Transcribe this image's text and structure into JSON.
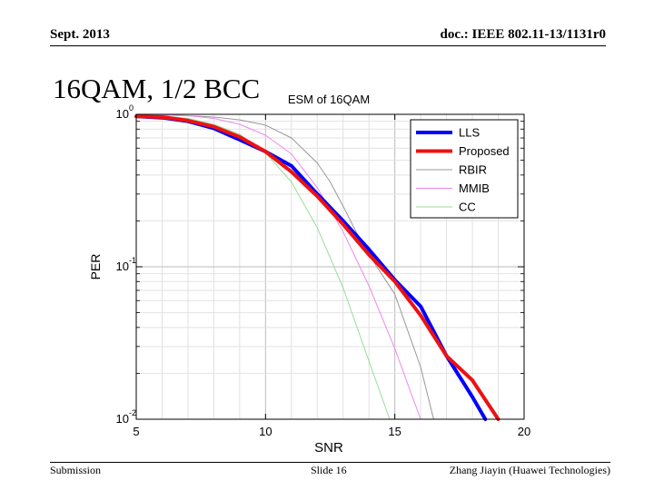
{
  "header": {
    "date": "Sept. 2013",
    "doc": "doc.: IEEE 802.11-13/1131r0"
  },
  "slide": {
    "title": "16QAM, 1/2 BCC"
  },
  "footer": {
    "left": "Submission",
    "center": "Slide 16",
    "right": "Zhang Jiayin (Huawei Technologies)"
  },
  "chart_data": {
    "type": "line",
    "title": "ESM of 16QAM",
    "xlabel": "SNR",
    "ylabel": "PER",
    "xlim": [
      5,
      20
    ],
    "ylim": [
      0.01,
      1
    ],
    "yscale": "log",
    "grid": true,
    "legend_position": "top-right",
    "x_ticks": [
      "5",
      "10",
      "15",
      "20"
    ],
    "y_tick_base": "10",
    "y_tick_exponents": [
      "0",
      "-1",
      "-2"
    ],
    "y_tick_values": [
      1,
      0.1,
      0.01
    ],
    "series": [
      {
        "name": "LLS",
        "color": "#0000ff",
        "width": 4,
        "x": [
          5,
          6,
          7,
          8,
          9,
          10,
          11,
          12,
          13,
          14,
          15,
          16,
          17,
          18,
          18.5
        ],
        "y": [
          0.97,
          0.95,
          0.9,
          0.81,
          0.68,
          0.57,
          0.46,
          0.3,
          0.2,
          0.13,
          0.082,
          0.055,
          0.026,
          0.014,
          0.0095
        ]
      },
      {
        "name": "Proposed",
        "color": "#ee1111",
        "width": 4,
        "x": [
          5,
          6,
          7,
          8,
          9,
          10,
          11,
          12,
          13,
          14,
          15,
          16,
          17,
          18,
          19
        ],
        "y": [
          0.97,
          0.96,
          0.91,
          0.83,
          0.71,
          0.57,
          0.42,
          0.29,
          0.19,
          0.12,
          0.08,
          0.048,
          0.026,
          0.018,
          0.0095
        ]
      },
      {
        "name": "RBIR",
        "color": "#999999",
        "width": 1,
        "x": [
          5,
          6,
          7,
          8,
          9,
          10,
          11,
          12,
          12.5,
          13,
          13.5,
          14,
          15,
          16,
          16.5
        ],
        "y": [
          0.99,
          0.99,
          0.98,
          0.96,
          0.92,
          0.85,
          0.7,
          0.48,
          0.36,
          0.25,
          0.17,
          0.12,
          0.066,
          0.022,
          0.0095
        ]
      },
      {
        "name": "MMIB",
        "color": "#ee88ee",
        "width": 1,
        "x": [
          5,
          6,
          7,
          8,
          9,
          10,
          11,
          12,
          13,
          14,
          15,
          15.5,
          16
        ],
        "y": [
          0.99,
          0.99,
          0.98,
          0.94,
          0.86,
          0.73,
          0.55,
          0.33,
          0.17,
          0.075,
          0.029,
          0.017,
          0.0095
        ]
      },
      {
        "name": "CC",
        "color": "#99dd99",
        "width": 1,
        "x": [
          5,
          6,
          7,
          8,
          9,
          10,
          11,
          12,
          13,
          14,
          14.8
        ],
        "y": [
          0.99,
          0.98,
          0.94,
          0.86,
          0.74,
          0.56,
          0.36,
          0.18,
          0.073,
          0.024,
          0.0095
        ]
      }
    ]
  }
}
